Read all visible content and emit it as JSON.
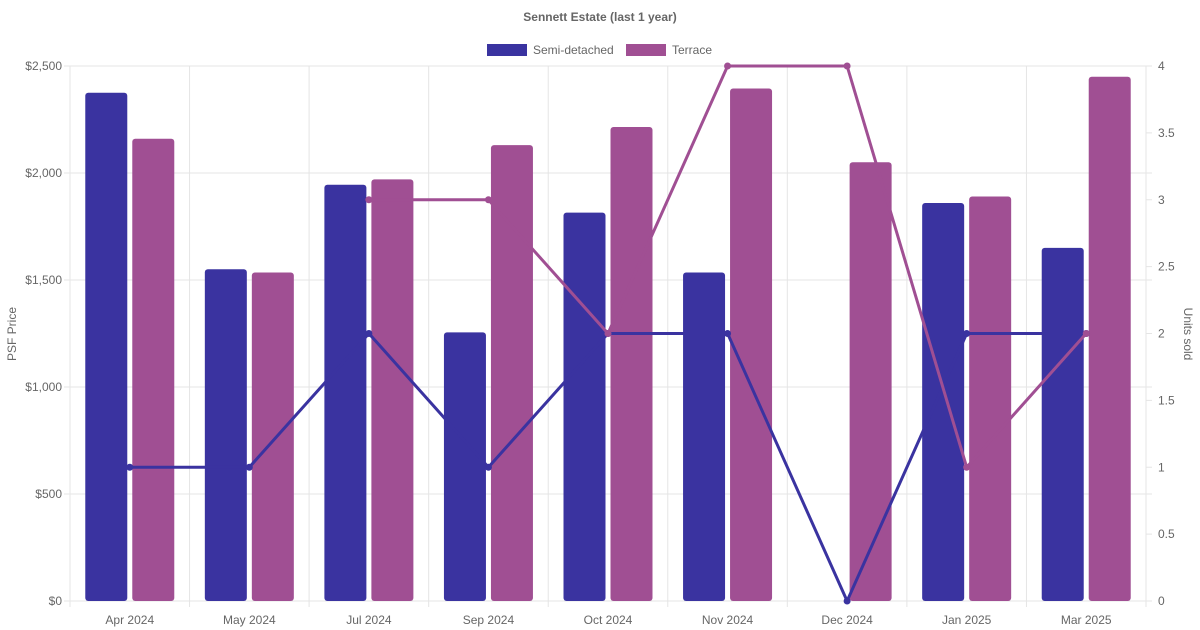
{
  "chart_data": {
    "type": "bar",
    "title": "Sennett Estate (last 1 year)",
    "categories": [
      "Apr 2024",
      "May 2024",
      "Jul 2024",
      "Sep 2024",
      "Oct 2024",
      "Nov 2024",
      "Dec 2024",
      "Jan 2025",
      "Mar 2025"
    ],
    "series": [
      {
        "name": "Semi-detached",
        "type": "bar",
        "axis": "left",
        "color": "#3a33a0",
        "values": [
          2375,
          1550,
          1945,
          1255,
          1815,
          1535,
          null,
          1860,
          1650
        ]
      },
      {
        "name": "Terrace",
        "type": "bar",
        "axis": "left",
        "color": "#a04f93",
        "values": [
          2160,
          1535,
          1970,
          2130,
          2215,
          2395,
          2050,
          1890,
          2450
        ]
      },
      {
        "name": "Semi-detached units sold",
        "type": "line",
        "axis": "right",
        "color": "#3a33a0",
        "values": [
          1,
          1,
          2,
          1,
          2,
          2,
          0,
          2,
          2
        ]
      },
      {
        "name": "Terrace units sold",
        "type": "line",
        "axis": "right",
        "color": "#a04f93",
        "values": [
          null,
          null,
          3,
          3,
          2,
          4,
          4,
          1,
          2
        ]
      }
    ],
    "legend": {
      "position": "top",
      "entries": [
        "Semi-detached",
        "Terrace"
      ]
    },
    "y_left": {
      "label": "PSF Price",
      "min": 0,
      "max": 2500,
      "ticks": [
        0,
        500,
        1000,
        1500,
        2000,
        2500
      ],
      "tick_labels": [
        "$0",
        "$500",
        "$1,000",
        "$1,500",
        "$2,000",
        "$2,500"
      ]
    },
    "y_right": {
      "label": "Units sold",
      "min": 0,
      "max": 4,
      "ticks": [
        0,
        0.5,
        1,
        1.5,
        2,
        2.5,
        3,
        3.5,
        4
      ],
      "tick_labels": [
        "0",
        "0.5",
        "1",
        "1.5",
        "2",
        "2.5",
        "3",
        "3.5",
        "4"
      ]
    },
    "grid": true
  }
}
